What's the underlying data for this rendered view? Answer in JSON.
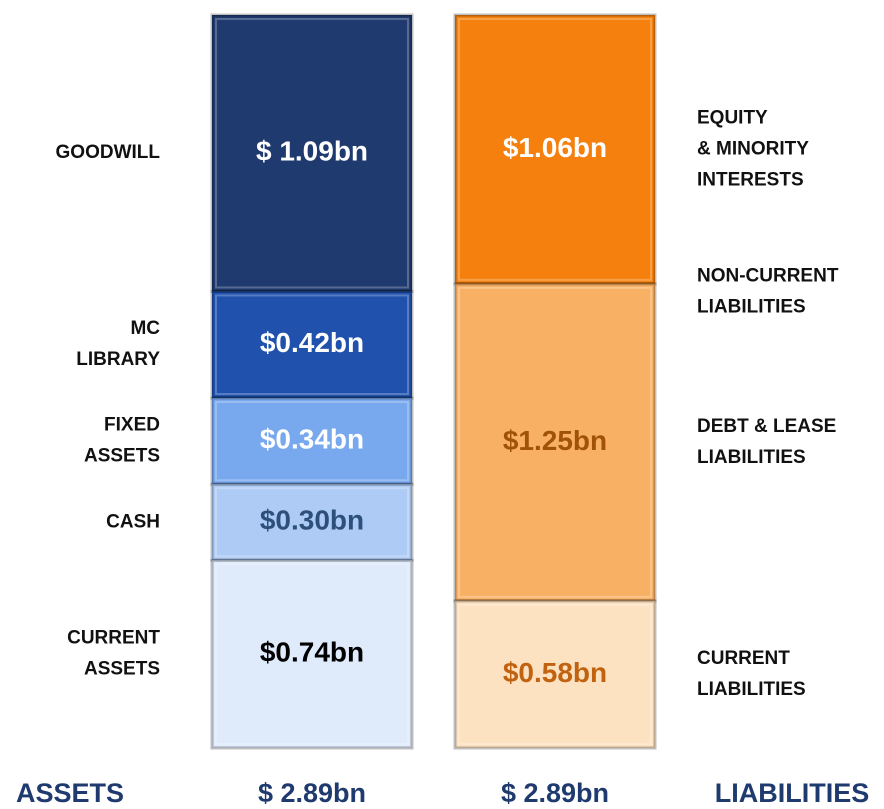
{
  "chart_data": {
    "type": "stacked_bar",
    "columns": [
      {
        "name": "ASSETS",
        "total": 2.89,
        "total_label": "$ 2.89bn",
        "side": "left",
        "segments": [
          {
            "label": [
              "GOODWILL"
            ],
            "value": 1.09,
            "value_label": "$ 1.09bn",
            "color": "#1f3a6e",
            "text_color": "#ffffff"
          },
          {
            "label": [
              "MC",
              "LIBRARY"
            ],
            "value": 0.42,
            "value_label": "$0.42bn",
            "color": "#1f51ad",
            "text_color": "#ffffff"
          },
          {
            "label": [
              "FIXED",
              "ASSETS"
            ],
            "value": 0.34,
            "value_label": "$0.34bn",
            "color": "#78a8ee",
            "text_color": "#ffffff"
          },
          {
            "label": [
              "CASH"
            ],
            "value": 0.3,
            "value_label": "$0.30bn",
            "color": "#aecbf5",
            "text_color": "#2c4f7c"
          },
          {
            "label": [
              "CURRENT",
              "ASSETS"
            ],
            "value": 0.74,
            "value_label": "$0.74bn",
            "color": "#dfeafb",
            "text_color": "#000000"
          }
        ]
      },
      {
        "name": "LIABILITIES",
        "total": 2.89,
        "total_label": "$ 2.89bn",
        "side": "right",
        "segments": [
          {
            "label": [
              "EQUITY",
              "& MINORITY",
              "INTERESTS"
            ],
            "value": 1.06,
            "value_label": "$1.06bn",
            "color": "#f5800e",
            "text_color": "#ffffff"
          },
          {
            "label": [
              "DEBT & LEASE",
              "LIABILITIES"
            ],
            "annotation": [
              "NON-CURRENT",
              "LIABILITIES"
            ],
            "value": 1.25,
            "value_label": "$1.25bn",
            "color": "#f8b064",
            "text_color": "#a0520a"
          },
          {
            "label": [
              "CURRENT",
              "LIABILITIES"
            ],
            "value": 0.58,
            "value_label": "$0.58bn",
            "color": "#fde2c2",
            "text_color": "#c0620f"
          }
        ]
      }
    ]
  }
}
